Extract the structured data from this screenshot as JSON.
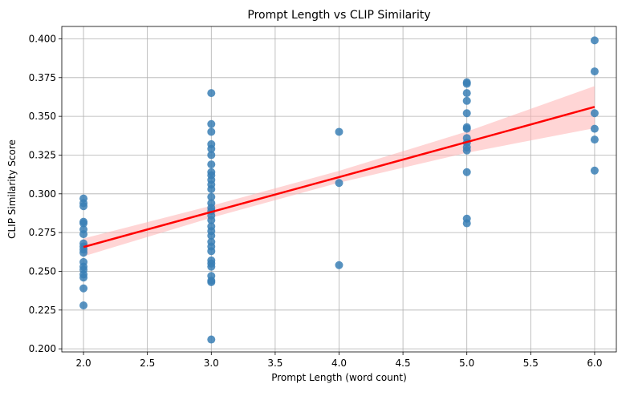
{
  "chart_data": {
    "type": "scatter",
    "title": "Prompt Length vs CLIP Similarity",
    "xlabel": "Prompt Length (word count)",
    "ylabel": "CLIP Similarity Score",
    "xlim": [
      1.83,
      6.17
    ],
    "ylim": [
      0.198,
      0.408
    ],
    "xticks": [
      2.0,
      2.5,
      3.0,
      3.5,
      4.0,
      4.5,
      5.0,
      5.5,
      6.0
    ],
    "xtick_labels": [
      "2.0",
      "2.5",
      "3.0",
      "3.5",
      "4.0",
      "4.5",
      "5.0",
      "5.5",
      "6.0"
    ],
    "yticks": [
      0.2,
      0.225,
      0.25,
      0.275,
      0.3,
      0.325,
      0.35,
      0.375,
      0.4
    ],
    "ytick_labels": [
      "0.200",
      "0.225",
      "0.250",
      "0.275",
      "0.300",
      "0.325",
      "0.350",
      "0.375",
      "0.400"
    ],
    "grid": true,
    "colors": {
      "points": "#3a7fb5",
      "regression_line": "#ff0000",
      "confidence_band": "#ffb3b3",
      "grid": "#b0b0b0"
    },
    "points": [
      {
        "x": 2,
        "y": 0.297
      },
      {
        "x": 2,
        "y": 0.294
      },
      {
        "x": 2,
        "y": 0.292
      },
      {
        "x": 2,
        "y": 0.282
      },
      {
        "x": 2,
        "y": 0.281
      },
      {
        "x": 2,
        "y": 0.277
      },
      {
        "x": 2,
        "y": 0.274
      },
      {
        "x": 2,
        "y": 0.268
      },
      {
        "x": 2,
        "y": 0.266
      },
      {
        "x": 2,
        "y": 0.264
      },
      {
        "x": 2,
        "y": 0.262
      },
      {
        "x": 2,
        "y": 0.256
      },
      {
        "x": 2,
        "y": 0.253
      },
      {
        "x": 2,
        "y": 0.251
      },
      {
        "x": 2,
        "y": 0.248
      },
      {
        "x": 2,
        "y": 0.246
      },
      {
        "x": 2,
        "y": 0.239
      },
      {
        "x": 2,
        "y": 0.228
      },
      {
        "x": 3,
        "y": 0.365
      },
      {
        "x": 3,
        "y": 0.345
      },
      {
        "x": 3,
        "y": 0.34
      },
      {
        "x": 3,
        "y": 0.332
      },
      {
        "x": 3,
        "y": 0.329
      },
      {
        "x": 3,
        "y": 0.325
      },
      {
        "x": 3,
        "y": 0.319
      },
      {
        "x": 3,
        "y": 0.314
      },
      {
        "x": 3,
        "y": 0.312
      },
      {
        "x": 3,
        "y": 0.309
      },
      {
        "x": 3,
        "y": 0.306
      },
      {
        "x": 3,
        "y": 0.303
      },
      {
        "x": 3,
        "y": 0.298
      },
      {
        "x": 3,
        "y": 0.294
      },
      {
        "x": 3,
        "y": 0.291
      },
      {
        "x": 3,
        "y": 0.289
      },
      {
        "x": 3,
        "y": 0.286
      },
      {
        "x": 3,
        "y": 0.283
      },
      {
        "x": 3,
        "y": 0.279
      },
      {
        "x": 3,
        "y": 0.276
      },
      {
        "x": 3,
        "y": 0.273
      },
      {
        "x": 3,
        "y": 0.269
      },
      {
        "x": 3,
        "y": 0.266
      },
      {
        "x": 3,
        "y": 0.263
      },
      {
        "x": 3,
        "y": 0.257
      },
      {
        "x": 3,
        "y": 0.255
      },
      {
        "x": 3,
        "y": 0.253
      },
      {
        "x": 3,
        "y": 0.247
      },
      {
        "x": 3,
        "y": 0.244
      },
      {
        "x": 3,
        "y": 0.243
      },
      {
        "x": 3,
        "y": 0.206
      },
      {
        "x": 4,
        "y": 0.34
      },
      {
        "x": 4,
        "y": 0.307
      },
      {
        "x": 4,
        "y": 0.254
      },
      {
        "x": 5,
        "y": 0.372
      },
      {
        "x": 5,
        "y": 0.371
      },
      {
        "x": 5,
        "y": 0.365
      },
      {
        "x": 5,
        "y": 0.36
      },
      {
        "x": 5,
        "y": 0.352
      },
      {
        "x": 5,
        "y": 0.343
      },
      {
        "x": 5,
        "y": 0.342
      },
      {
        "x": 5,
        "y": 0.336
      },
      {
        "x": 5,
        "y": 0.333
      },
      {
        "x": 5,
        "y": 0.33
      },
      {
        "x": 5,
        "y": 0.328
      },
      {
        "x": 5,
        "y": 0.314
      },
      {
        "x": 5,
        "y": 0.284
      },
      {
        "x": 5,
        "y": 0.281
      },
      {
        "x": 6,
        "y": 0.399
      },
      {
        "x": 6,
        "y": 0.379
      },
      {
        "x": 6,
        "y": 0.352
      },
      {
        "x": 6,
        "y": 0.342
      },
      {
        "x": 6,
        "y": 0.335
      },
      {
        "x": 6,
        "y": 0.315
      }
    ],
    "regression": {
      "x": [
        2,
        3,
        4,
        5,
        6
      ],
      "y": [
        0.2657,
        0.2883,
        0.3108,
        0.3334,
        0.3561
      ],
      "ci_lower": [
        0.2597,
        0.2846,
        0.3072,
        0.3265,
        0.3424
      ],
      "ci_upper": [
        0.2712,
        0.2923,
        0.3148,
        0.3402,
        0.3695
      ]
    }
  }
}
